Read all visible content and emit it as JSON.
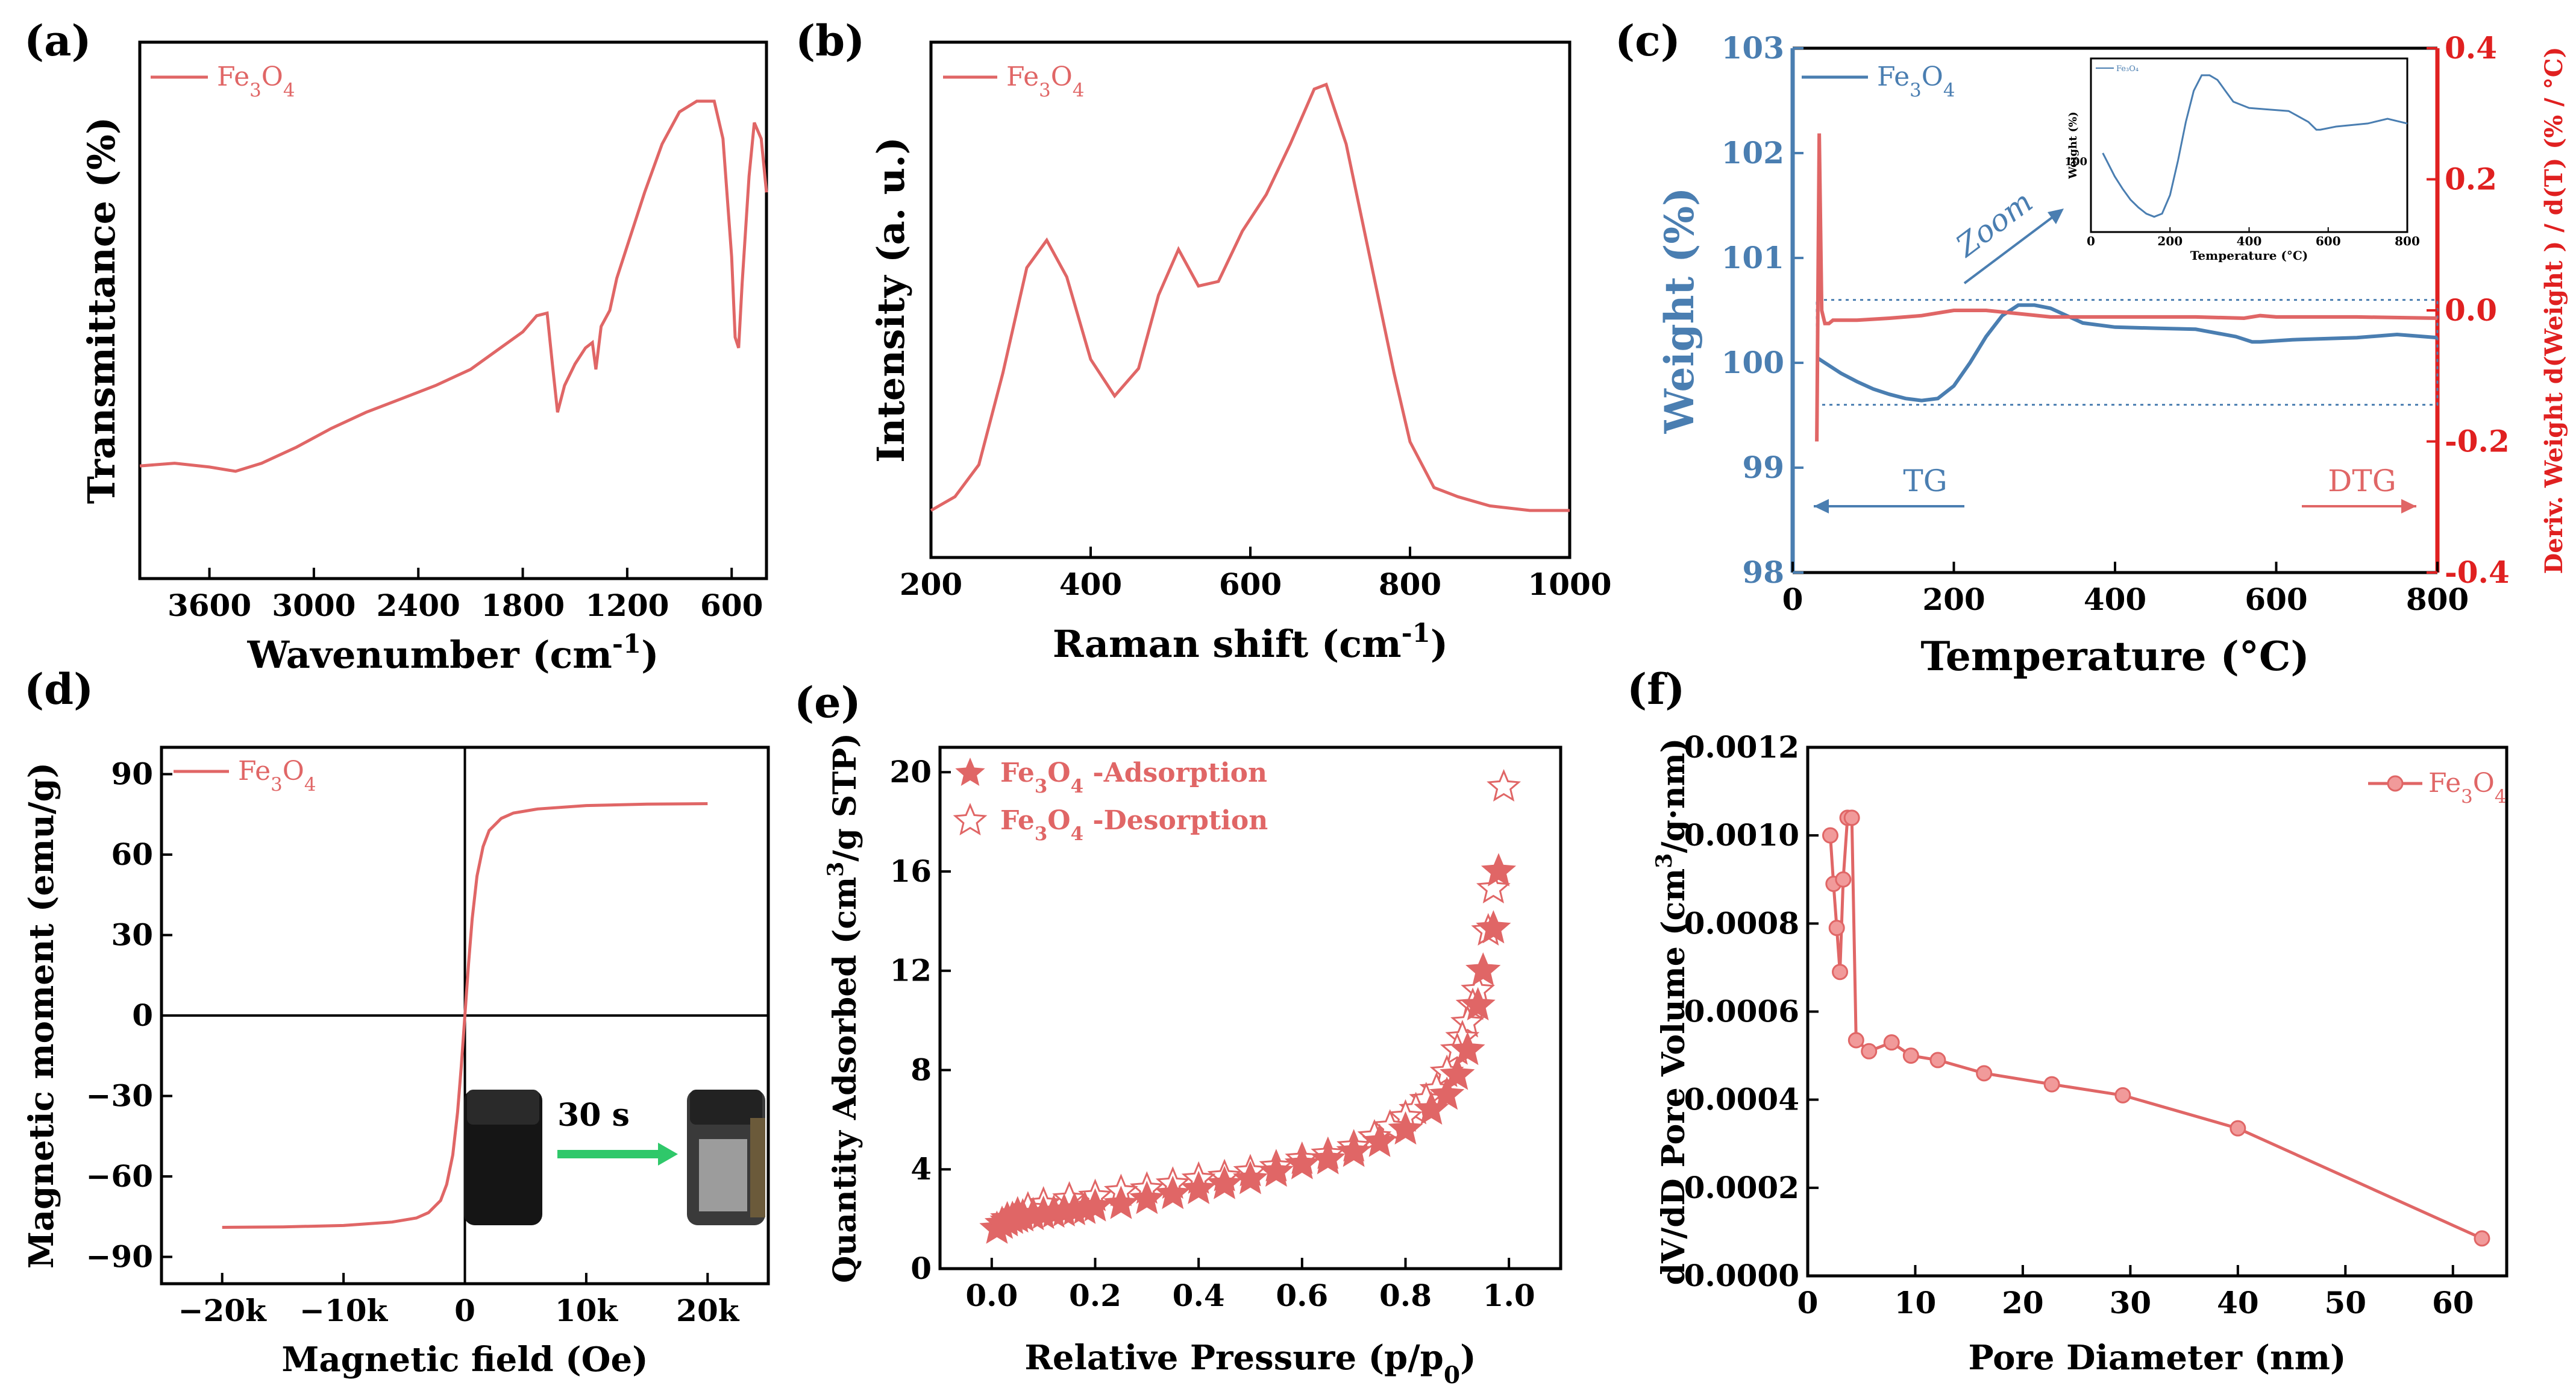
{
  "colors": {
    "red": "#e06666",
    "blue": "#4a7eb1",
    "dtgred": "#e02020",
    "black": "#000000"
  },
  "chart_data": [
    {
      "id": "a",
      "panel_label": "(a)",
      "type": "line",
      "xlabel": "Wavenumber (cm",
      "xlabel_sup": "-1",
      "xlabel_tail": ")",
      "ylabel": "Transmittance (%)",
      "xlim": [
        4000,
        400
      ],
      "ylim": [
        0,
        100
      ],
      "xticks": [
        3600,
        3000,
        2400,
        1800,
        1200,
        600
      ],
      "xticklabels": [
        "3600",
        "3000",
        "2400",
        "1800",
        "1200",
        "600"
      ],
      "legend": "Fe",
      "legend_sub": "3",
      "legend_mid": "O",
      "legend_sub2": "4",
      "series": [
        {
          "name": "Fe3O4",
          "x": [
            4000,
            3800,
            3600,
            3450,
            3300,
            3100,
            2900,
            2700,
            2500,
            2300,
            2100,
            1950,
            1800,
            1720,
            1660,
            1630,
            1600,
            1560,
            1500,
            1440,
            1400,
            1380,
            1350,
            1300,
            1260,
            1200,
            1100,
            1000,
            900,
            800,
            700,
            650,
            600,
            580,
            560,
            540,
            500,
            470,
            430,
            400
          ],
          "y": [
            21,
            21.5,
            20.8,
            20,
            21.5,
            24.5,
            28,
            31,
            33.5,
            36,
            39,
            42.5,
            46,
            49,
            49.5,
            40,
            31,
            36,
            40,
            43,
            44,
            39,
            47,
            50,
            56,
            62,
            72,
            81,
            87,
            89,
            89,
            82,
            60,
            45,
            43,
            55,
            75,
            85,
            82,
            72
          ]
        }
      ]
    },
    {
      "id": "b",
      "panel_label": "(b)",
      "type": "line",
      "xlabel": "Raman shift (cm",
      "xlabel_sup": "-1",
      "xlabel_tail": ")",
      "ylabel": "Intensity (a. u.)",
      "xlim": [
        200,
        1000
      ],
      "ylim": [
        0,
        100
      ],
      "xticks": [
        200,
        400,
        600,
        800,
        1000
      ],
      "xticklabels": [
        "200",
        "400",
        "600",
        "800",
        "1000"
      ],
      "legend": "Fe",
      "legend_sub": "3",
      "legend_mid": "O",
      "legend_sub2": "4",
      "series": [
        {
          "name": "Fe3O4",
          "x": [
            200,
            230,
            260,
            290,
            320,
            345,
            370,
            400,
            430,
            460,
            485,
            510,
            535,
            560,
            590,
            620,
            650,
            680,
            695,
            720,
            750,
            780,
            800,
            830,
            860,
            900,
            950,
            1000
          ],
          "y": [
            5,
            8,
            15,
            35,
            58,
            64,
            56,
            38,
            30,
            36,
            52,
            62,
            54,
            55,
            66,
            74,
            85,
            97,
            98,
            85,
            60,
            35,
            20,
            10,
            8,
            6,
            5,
            5
          ]
        }
      ]
    },
    {
      "id": "c",
      "panel_label": "(c)",
      "type": "line",
      "xlabel": "Temperature (°C)",
      "ylabel": "Weight (%)",
      "ylabel2": "Deriv. Weight d(Weight ) / d(T) (% / °C)",
      "xlim": [
        0,
        800
      ],
      "ylim": [
        98,
        103
      ],
      "y2lim": [
        -0.4,
        0.4
      ],
      "xticks": [
        0,
        200,
        400,
        600,
        800
      ],
      "xticklabels": [
        "0",
        "200",
        "400",
        "600",
        "800"
      ],
      "yticks": [
        98,
        99,
        100,
        101,
        102,
        103
      ],
      "yticklabels": [
        "98",
        "99",
        "100",
        "101",
        "102",
        "103"
      ],
      "y2ticks": [
        -0.4,
        -0.2,
        0.0,
        0.2,
        0.4
      ],
      "y2ticklabels": [
        "-0.4",
        "-0.2",
        "0.0",
        "0.2",
        "0.4"
      ],
      "legend": "Fe",
      "legend_sub": "3",
      "legend_mid": "O",
      "legend_sub2": "4",
      "annotations": {
        "tg": "TG",
        "dtg": "DTG",
        "zoom": "Zoom"
      },
      "series": [
        {
          "name": "TG (Weight %)",
          "axis": "left",
          "x": [
            30,
            40,
            60,
            80,
            100,
            120,
            140,
            160,
            180,
            200,
            220,
            240,
            260,
            280,
            300,
            320,
            340,
            360,
            400,
            450,
            500,
            550,
            570,
            580,
            620,
            700,
            750,
            800
          ],
          "y": [
            100.05,
            100.0,
            99.9,
            99.82,
            99.75,
            99.7,
            99.66,
            99.64,
            99.66,
            99.78,
            100.0,
            100.25,
            100.45,
            100.55,
            100.55,
            100.52,
            100.45,
            100.38,
            100.34,
            100.33,
            100.32,
            100.25,
            100.2,
            100.2,
            100.22,
            100.24,
            100.27,
            100.24
          ]
        },
        {
          "name": "DTG (% / °C)",
          "axis": "right",
          "x": [
            30,
            33,
            36,
            40,
            45,
            50,
            80,
            120,
            160,
            200,
            240,
            280,
            320,
            400,
            500,
            560,
            580,
            600,
            700,
            800
          ],
          "y": [
            -0.2,
            0.27,
            0.0,
            -0.02,
            -0.02,
            -0.015,
            -0.015,
            -0.012,
            -0.008,
            0.0,
            0.0,
            -0.005,
            -0.01,
            -0.01,
            -0.01,
            -0.012,
            -0.008,
            -0.01,
            -0.01,
            -0.012
          ]
        }
      ],
      "inset": {
        "xlim": [
          0,
          800
        ],
        "xticks": [
          0,
          200,
          400,
          600,
          800
        ],
        "xticklabels": [
          "0",
          "200",
          "400",
          "600",
          "800"
        ],
        "ytick": "100",
        "xlabel": "Temperature (°C)",
        "ylabel": "Weight (%)",
        "legend": "Fe₃O₄",
        "x": [
          30,
          40,
          60,
          80,
          100,
          120,
          140,
          160,
          180,
          200,
          220,
          240,
          260,
          280,
          300,
          320,
          340,
          360,
          400,
          450,
          500,
          550,
          570,
          580,
          620,
          700,
          750,
          800
        ],
        "y": [
          100.05,
          100.0,
          99.9,
          99.82,
          99.75,
          99.7,
          99.66,
          99.64,
          99.66,
          99.78,
          100.0,
          100.25,
          100.45,
          100.55,
          100.55,
          100.52,
          100.45,
          100.38,
          100.34,
          100.33,
          100.32,
          100.25,
          100.2,
          100.2,
          100.22,
          100.24,
          100.27,
          100.24
        ],
        "ylim": [
          99.6,
          100.6
        ]
      }
    },
    {
      "id": "d",
      "panel_label": "(d)",
      "type": "line",
      "xlabel": "Magnetic field (Oe)",
      "ylabel": "Magnetic moment (emu/g)",
      "xlim": [
        -25000,
        25000
      ],
      "ylim": [
        -100,
        100
      ],
      "xticks": [
        -20000,
        -10000,
        0,
        10000,
        20000
      ],
      "xticklabels": [
        "−20k",
        "−10k",
        "0",
        "10k",
        "20k"
      ],
      "yticks": [
        -90,
        -60,
        -30,
        0,
        30,
        60,
        90
      ],
      "yticklabels": [
        "−90",
        "−60",
        "−30",
        "0",
        "30",
        "60",
        "90"
      ],
      "legend": "Fe",
      "legend_sub": "3",
      "legend_mid": "O",
      "legend_sub2": "4",
      "inset_text": "30 s",
      "series": [
        {
          "name": "Fe3O4",
          "x": [
            -20000,
            -15000,
            -10000,
            -6000,
            -4000,
            -3000,
            -2000,
            -1500,
            -1000,
            -600,
            -300,
            0,
            300,
            600,
            1000,
            1500,
            2000,
            3000,
            4000,
            6000,
            10000,
            15000,
            20000
          ],
          "y": [
            -79,
            -78.8,
            -78.3,
            -77,
            -75.5,
            -73.5,
            -69,
            -63,
            -52,
            -36,
            -19,
            0,
            19,
            36,
            52,
            63,
            69,
            73.5,
            75.5,
            77,
            78.3,
            78.8,
            79
          ]
        }
      ]
    },
    {
      "id": "e",
      "panel_label": "(e)",
      "type": "scatter",
      "xlabel": "Relative Pressure (p/p",
      "xlabel_sub": "0",
      "xlabel_tail": ")",
      "ylabel": "Quantity Adsorbed (cm",
      "ylabel_sup": "3",
      "ylabel_tail": "/g STP)",
      "xlim": [
        -0.1,
        1.1
      ],
      "ylim": [
        0,
        21
      ],
      "xticks": [
        0.0,
        0.2,
        0.4,
        0.6,
        0.8,
        1.0
      ],
      "xticklabels": [
        "0.0",
        "0.2",
        "0.4",
        "0.6",
        "0.8",
        "1.0"
      ],
      "yticks": [
        0,
        4,
        8,
        12,
        16,
        20
      ],
      "yticklabels": [
        "0",
        "4",
        "8",
        "12",
        "16",
        "20"
      ],
      "legend_ads": "-Adsorption",
      "legend_des": "-Desorption",
      "legend_chem": "Fe",
      "legend_sub": "3",
      "legend_mid": "O",
      "legend_sub2": "4",
      "series": [
        {
          "name": "Fe3O4 -Adsorption",
          "marker": "filled-star",
          "x": [
            0.01,
            0.02,
            0.03,
            0.04,
            0.05,
            0.06,
            0.08,
            0.1,
            0.12,
            0.14,
            0.16,
            0.18,
            0.2,
            0.25,
            0.3,
            0.35,
            0.4,
            0.45,
            0.5,
            0.55,
            0.6,
            0.65,
            0.7,
            0.75,
            0.8,
            0.85,
            0.88,
            0.9,
            0.92,
            0.94,
            0.95,
            0.97,
            0.98
          ],
          "y": [
            1.6,
            1.8,
            1.9,
            2.0,
            2.05,
            2.1,
            2.15,
            2.2,
            2.25,
            2.3,
            2.35,
            2.4,
            2.5,
            2.6,
            2.8,
            3.0,
            3.2,
            3.4,
            3.6,
            3.9,
            4.2,
            4.4,
            4.7,
            5.1,
            5.6,
            6.4,
            7.0,
            7.8,
            8.8,
            10.6,
            12.0,
            13.7,
            16.0
          ]
        },
        {
          "name": "Fe3O4 -Desorption",
          "marker": "open-star",
          "x": [
            0.99,
            0.97,
            0.96,
            0.95,
            0.94,
            0.93,
            0.92,
            0.91,
            0.9,
            0.88,
            0.86,
            0.84,
            0.82,
            0.8,
            0.77,
            0.74,
            0.7,
            0.65,
            0.6,
            0.55,
            0.5,
            0.45,
            0.4,
            0.35,
            0.3,
            0.25,
            0.2,
            0.15,
            0.1,
            0.07,
            0.05,
            0.03
          ],
          "y": [
            19.4,
            15.3,
            13.6,
            12.0,
            11.2,
            10.6,
            9.9,
            9.3,
            8.8,
            7.9,
            7.2,
            6.8,
            6.4,
            6.1,
            5.7,
            5.3,
            4.9,
            4.6,
            4.4,
            4.1,
            3.9,
            3.7,
            3.6,
            3.4,
            3.2,
            3.1,
            2.9,
            2.8,
            2.6,
            2.4,
            2.2,
            2.0
          ]
        }
      ]
    },
    {
      "id": "f",
      "panel_label": "(f)",
      "type": "line",
      "xlabel": "Pore Diameter (nm)",
      "ylabel": "dV/dD Pore Volume (cm",
      "ylabel_sup": "3",
      "ylabel_tail": "/g·nm)",
      "xlim": [
        0,
        65
      ],
      "ylim": [
        0,
        0.0012
      ],
      "xticks": [
        0,
        10,
        20,
        30,
        40,
        50,
        60
      ],
      "xticklabels": [
        "0",
        "10",
        "20",
        "30",
        "40",
        "50",
        "60"
      ],
      "yticks": [
        0,
        0.0002,
        0.0004,
        0.0006,
        0.0008,
        0.001,
        0.0012
      ],
      "yticklabels": [
        "0.0000",
        "0.0002",
        "0.0004",
        "0.0006",
        "0.0008",
        "0.0010",
        "0.0012"
      ],
      "legend": "Fe",
      "legend_sub": "3",
      "legend_mid": "O",
      "legend_sub2": "4",
      "series": [
        {
          "name": "Fe3O4",
          "x": [
            2.1,
            2.4,
            2.7,
            3.0,
            3.3,
            3.7,
            4.1,
            4.5,
            5.7,
            7.8,
            9.6,
            12.1,
            16.4,
            22.7,
            29.3,
            40.0,
            62.7
          ],
          "y": [
            0.001,
            0.00089,
            0.00079,
            0.00069,
            0.0009,
            0.00104,
            0.00104,
            0.000535,
            0.00051,
            0.00053,
            0.0005,
            0.00049,
            0.00046,
            0.000435,
            0.00041,
            0.000335,
            8.5e-05
          ]
        }
      ]
    }
  ]
}
